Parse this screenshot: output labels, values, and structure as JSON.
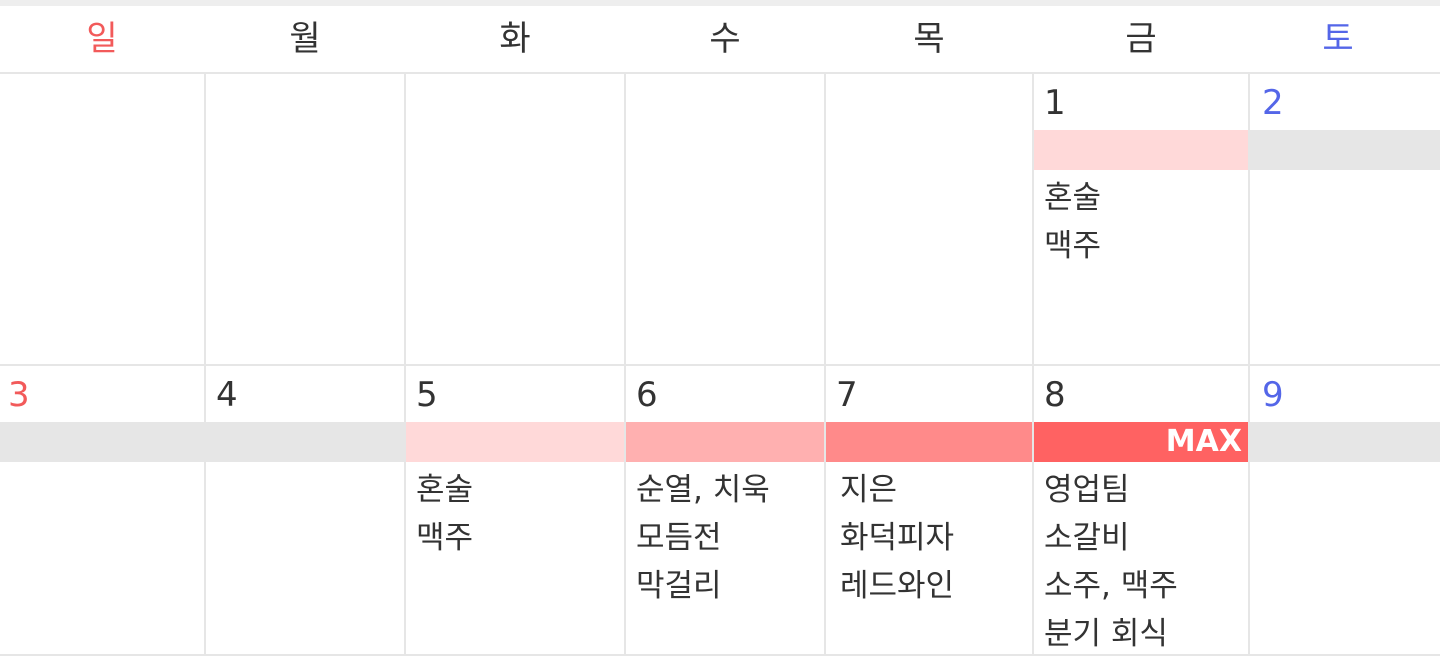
{
  "colors": {
    "sunday": "#f25a5a",
    "saturday": "#5466e8",
    "text": "#333333",
    "grid": "#e6e6e6",
    "level_empty": "#e6e6e6",
    "level_1": "#ffd9d9",
    "level_2": "#ffb0b0",
    "level_3": "#ff8a8a",
    "level_max": "#ff6262"
  },
  "weekdays": [
    "일",
    "월",
    "화",
    "수",
    "목",
    "금",
    "토"
  ],
  "weeks": [
    {
      "days": [
        {
          "num": "",
          "level": null,
          "entries": []
        },
        {
          "num": "",
          "level": null,
          "entries": []
        },
        {
          "num": "",
          "level": null,
          "entries": []
        },
        {
          "num": "",
          "level": null,
          "entries": []
        },
        {
          "num": "",
          "level": null,
          "entries": []
        },
        {
          "num": "1",
          "level": "level_1",
          "entries": [
            "혼술",
            "맥주"
          ]
        },
        {
          "num": "2",
          "level": "level_empty",
          "entries": []
        }
      ]
    },
    {
      "days": [
        {
          "num": "3",
          "level": "level_empty",
          "entries": []
        },
        {
          "num": "4",
          "level": "level_empty",
          "entries": []
        },
        {
          "num": "5",
          "level": "level_1",
          "entries": [
            "혼술",
            "맥주"
          ]
        },
        {
          "num": "6",
          "level": "level_2",
          "entries": [
            "순열, 치욱",
            "모듬전",
            "막걸리"
          ]
        },
        {
          "num": "7",
          "level": "level_3",
          "entries": [
            "지은",
            "화덕피자",
            "레드와인"
          ]
        },
        {
          "num": "8",
          "level": "level_max",
          "max_label": "MAX",
          "entries": [
            "영업팀",
            "소갈비",
            "소주, 맥주",
            "분기 회식"
          ]
        },
        {
          "num": "9",
          "level": "level_empty",
          "entries": []
        }
      ]
    }
  ]
}
